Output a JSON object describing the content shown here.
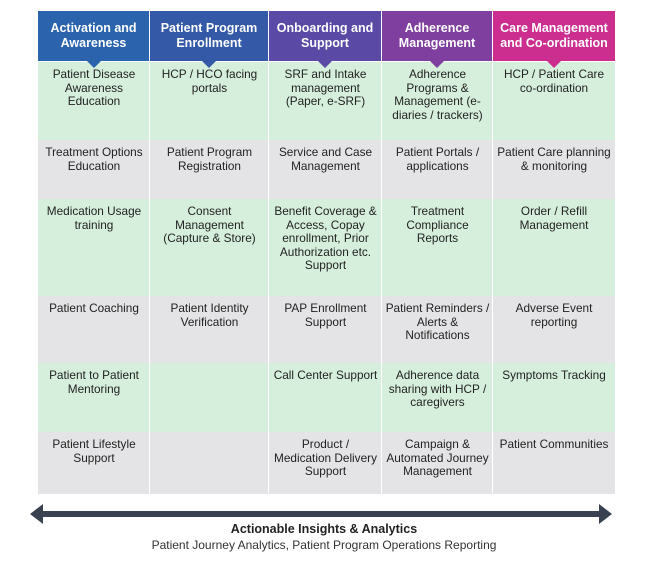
{
  "columns": [
    {
      "title": "Activation and Awareness",
      "color": "#2b63ad"
    },
    {
      "title": "Patient Program Enrollment",
      "color": "#3459a6"
    },
    {
      "title": "Onboarding and Support",
      "color": "#5a4aa6"
    },
    {
      "title": "Adherence Management",
      "color": "#7f3f9e"
    },
    {
      "title": "Care Management and Co-ordination",
      "color": "#cc2e8f"
    }
  ],
  "row_colors": [
    "#d6efdc",
    "#e4e4e6"
  ],
  "rows": [
    [
      "Patient Disease Awareness Education",
      "HCP / HCO facing portals",
      "SRF and Intake management (Paper, e-SRF)",
      "Adherence Programs & Management (e-diaries / trackers)",
      "HCP / Patient Care co-ordination"
    ],
    [
      "Treatment Options Education",
      "Patient Program Registration",
      "Service and Case Management",
      "Patient Portals / applications",
      "Patient Care planning & monitoring"
    ],
    [
      "Medication Usage training",
      "Consent Management (Capture & Store)",
      "Benefit Coverage & Access, Copay enrollment, Prior Authorization etc. Support",
      "Treatment Compliance Reports",
      "Order / Refill Management"
    ],
    [
      "Patient Coaching",
      "Patient Identity Verification",
      "PAP Enrollment Support",
      "Patient Reminders / Alerts & Notifications",
      "Adverse Event reporting"
    ],
    [
      "Patient to Patient Mentoring",
      "",
      "Call Center Support",
      "Adherence data sharing with HCP / caregivers",
      "Symptoms Tracking"
    ],
    [
      "Patient Lifestyle Support",
      "",
      "Product / Medication Delivery Support",
      "Campaign & Automated Journey Management",
      "Patient Communities"
    ]
  ],
  "footer": {
    "title": "Actionable Insights & Analytics",
    "subtitle": "Patient Journey Analytics, Patient Program Operations Reporting"
  },
  "arrow_color": "#3a4150"
}
